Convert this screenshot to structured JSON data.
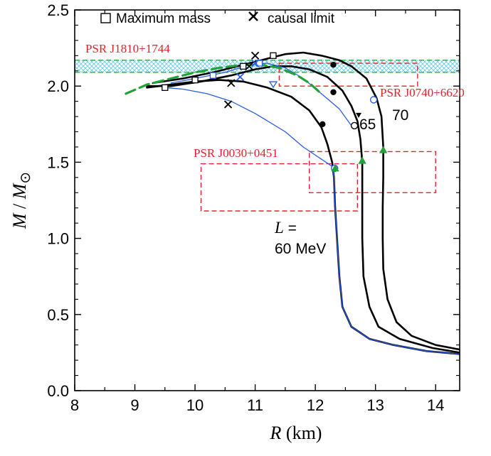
{
  "chart_data": {
    "type": "line",
    "xlabel_italic": "R",
    "xlabel_rest": "(km)",
    "ylabel_italic": "M",
    "ylabel_sep": " / ",
    "ylabel_sub": "M",
    "ylabel_sun": "⊙",
    "xlim": [
      8,
      14.4
    ],
    "ylim": [
      0,
      2.5
    ],
    "xticks": [
      8,
      9,
      10,
      11,
      12,
      13,
      14
    ],
    "yticks": [
      0.0,
      0.5,
      1.0,
      1.5,
      2.0,
      2.5
    ],
    "xtick_labels": [
      "8",
      "9",
      "10",
      "11",
      "12",
      "13",
      "14"
    ],
    "ytick_labels": [
      "0.0",
      "0.5",
      "1.0",
      "1.5",
      "2.0",
      "2.5"
    ],
    "legend": {
      "position": "top",
      "entries": [
        {
          "marker": "square",
          "label": "Maximum mass"
        },
        {
          "marker": "cross",
          "label": "causal limit"
        }
      ]
    },
    "constraints": [
      {
        "name": "PSR J1810+1744",
        "type": "band",
        "y": [
          2.09,
          2.17
        ],
        "color": "#5fc8e8"
      },
      {
        "name": "PSR J0740+6620",
        "type": "boxes",
        "boxes": [
          [
            11.4,
            2.0,
            13.7,
            2.15
          ]
        ],
        "color": "#e8202a"
      },
      {
        "name": "PSR J0030+0451",
        "type": "boxes",
        "boxes": [
          [
            10.1,
            1.18,
            12.7,
            1.49
          ],
          [
            11.9,
            1.3,
            14.0,
            1.57
          ]
        ],
        "color": "#e8202a"
      }
    ],
    "series": [
      {
        "label": "70",
        "color": "#000000",
        "style": "solid-thick",
        "points": [
          [
            14.4,
            0.27
          ],
          [
            14.0,
            0.3
          ],
          [
            13.6,
            0.36
          ],
          [
            13.35,
            0.45
          ],
          [
            13.2,
            0.6
          ],
          [
            13.13,
            0.8
          ],
          [
            13.12,
            1.0
          ],
          [
            13.12,
            1.2
          ],
          [
            13.13,
            1.4
          ],
          [
            13.13,
            1.6
          ],
          [
            13.1,
            1.8
          ],
          [
            13.02,
            1.92
          ],
          [
            12.85,
            2.05
          ],
          [
            12.6,
            2.13
          ],
          [
            12.4,
            2.17
          ],
          [
            12.1,
            2.2
          ],
          [
            11.8,
            2.22
          ],
          [
            11.5,
            2.21
          ],
          [
            11.2,
            2.18
          ],
          [
            10.8,
            2.14
          ],
          [
            10.3,
            2.09
          ],
          [
            9.8,
            2.05
          ],
          [
            9.3,
            2.02
          ]
        ],
        "markers": [
          {
            "type": "square",
            "x": 11.3,
            "y": 2.2
          },
          {
            "type": "cross",
            "x": 11.0,
            "y": 2.2
          },
          {
            "type": "dot",
            "x": 12.3,
            "y": 2.14
          },
          {
            "type": "open-circle",
            "x": 12.97,
            "y": 1.91
          },
          {
            "type": "triangle-up",
            "x": 13.13,
            "y": 1.58
          }
        ]
      },
      {
        "label": "65",
        "color": "#000000",
        "style": "solid-thick",
        "points": [
          [
            14.4,
            0.25
          ],
          [
            13.95,
            0.28
          ],
          [
            13.4,
            0.34
          ],
          [
            13.05,
            0.42
          ],
          [
            12.9,
            0.55
          ],
          [
            12.8,
            0.75
          ],
          [
            12.78,
            1.0
          ],
          [
            12.78,
            1.3
          ],
          [
            12.78,
            1.5
          ],
          [
            12.75,
            1.65
          ],
          [
            12.7,
            1.77
          ],
          [
            12.6,
            1.87
          ],
          [
            12.45,
            1.97
          ],
          [
            12.2,
            2.06
          ],
          [
            11.9,
            2.11
          ],
          [
            11.6,
            2.13
          ],
          [
            11.3,
            2.13
          ],
          [
            11.0,
            2.11
          ],
          [
            10.6,
            2.07
          ],
          [
            10.1,
            2.03
          ],
          [
            9.6,
            2.0
          ],
          [
            9.2,
            2.0
          ]
        ],
        "markers": [
          {
            "type": "square",
            "x": 10.8,
            "y": 2.13
          },
          {
            "type": "cross",
            "x": 10.9,
            "y": 2.13
          },
          {
            "type": "dot",
            "x": 12.3,
            "y": 1.96
          },
          {
            "type": "open-circle",
            "x": 12.65,
            "y": 1.74
          },
          {
            "type": "triangle-down",
            "x": 12.72,
            "y": 1.81
          },
          {
            "type": "triangle-up",
            "x": 12.78,
            "y": 1.51
          }
        ]
      },
      {
        "label": "60 MeV",
        "label_prefix_italic": "L",
        "label_prefix_rest": " =",
        "color": "#000000",
        "style": "solid-thick",
        "points": [
          [
            14.4,
            0.24
          ],
          [
            13.85,
            0.26
          ],
          [
            13.3,
            0.3
          ],
          [
            12.9,
            0.34
          ],
          [
            12.6,
            0.42
          ],
          [
            12.45,
            0.55
          ],
          [
            12.4,
            0.75
          ],
          [
            12.36,
            1.0
          ],
          [
            12.33,
            1.2
          ],
          [
            12.31,
            1.4
          ],
          [
            12.28,
            1.5
          ],
          [
            12.2,
            1.62
          ],
          [
            12.1,
            1.73
          ],
          [
            11.9,
            1.84
          ],
          [
            11.6,
            1.93
          ],
          [
            11.2,
            1.99
          ],
          [
            10.8,
            2.03
          ],
          [
            10.4,
            2.04
          ],
          [
            10.0,
            2.03
          ],
          [
            9.6,
            2.01
          ],
          [
            9.2,
            1.99
          ]
        ],
        "markers": [
          {
            "type": "square",
            "x": 10.0,
            "y": 2.04
          },
          {
            "type": "cross",
            "x": 10.6,
            "y": 2.02
          },
          {
            "type": "dot",
            "x": 12.12,
            "y": 1.75
          },
          {
            "type": "open-circle",
            "x": 12.32,
            "y": 1.46
          },
          {
            "type": "triangle-up",
            "x": 12.33,
            "y": 1.46
          }
        ]
      },
      {
        "label": "",
        "color": "#2b5ce6",
        "style": "solid-thin",
        "points": [
          [
            14.4,
            0.24
          ],
          [
            13.85,
            0.26
          ],
          [
            13.3,
            0.3
          ],
          [
            12.9,
            0.34
          ],
          [
            12.6,
            0.42
          ],
          [
            12.45,
            0.55
          ],
          [
            12.4,
            0.75
          ],
          [
            12.36,
            1.0
          ],
          [
            12.33,
            1.2
          ],
          [
            12.31,
            1.4
          ],
          [
            12.29,
            1.47
          ],
          [
            12.1,
            1.52
          ],
          [
            11.8,
            1.6
          ],
          [
            11.5,
            1.7
          ],
          [
            11.0,
            1.82
          ],
          [
            10.6,
            1.9
          ],
          [
            10.2,
            1.95
          ],
          [
            9.8,
            1.98
          ],
          [
            9.5,
            1.99
          ]
        ],
        "markers": [
          {
            "type": "square",
            "x": 9.5,
            "y": 1.99
          },
          {
            "type": "cross",
            "x": 10.55,
            "y": 1.88
          }
        ]
      },
      {
        "label": "",
        "color": "#2b5ce6",
        "style": "solid-thin",
        "points": [
          [
            12.6,
            1.74
          ],
          [
            12.4,
            1.85
          ],
          [
            12.1,
            1.95
          ],
          [
            11.8,
            2.05
          ],
          [
            11.5,
            2.12
          ],
          [
            11.2,
            2.15
          ],
          [
            10.9,
            2.14
          ],
          [
            10.5,
            2.09
          ],
          [
            10.0,
            2.05
          ],
          [
            9.6,
            2.02
          ]
        ],
        "markers": [
          {
            "type": "open-square",
            "x": 10.3,
            "y": 2.07
          },
          {
            "type": "cross",
            "x": 10.75,
            "y": 2.06
          },
          {
            "type": "open-triangle-down",
            "x": 11.3,
            "y": 2.01
          },
          {
            "type": "open-square",
            "x": 11.07,
            "y": 2.15
          },
          {
            "type": "cross",
            "x": 11.0,
            "y": 2.15
          }
        ]
      },
      {
        "label": "",
        "color": "#22a33a",
        "style": "dashed-thick",
        "points": [
          [
            8.85,
            1.95
          ],
          [
            9.2,
            2.01
          ],
          [
            9.6,
            2.05
          ],
          [
            10.0,
            2.09
          ],
          [
            10.4,
            2.12
          ],
          [
            10.8,
            2.14
          ],
          [
            11.1,
            2.14
          ],
          [
            11.4,
            2.12
          ],
          [
            11.7,
            2.07
          ],
          [
            11.9,
            2.02
          ],
          [
            12.1,
            1.95
          ]
        ],
        "markers": []
      }
    ]
  }
}
